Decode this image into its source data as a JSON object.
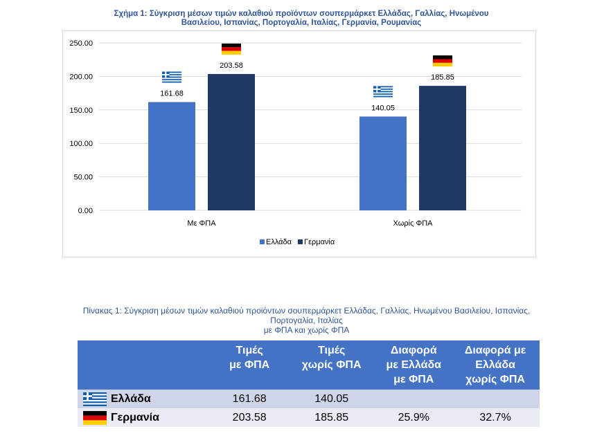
{
  "figure": {
    "title_line1": "Σχήμα 1: Σύγκριση μέσων τιμών καλαθιού προϊόντων σουπερμάρκετ Ελλάδας, Γαλλίας, Ηνωμένου",
    "title_line2": "Βασιλείου, Ισπανίας, Πορτογαλία, Ιταλίας, Γερμανία, Ρουμανίας"
  },
  "chart_data": {
    "type": "bar",
    "categories": [
      "Με ΦΠΑ",
      "Χωρίς ΦΠΑ"
    ],
    "series": [
      {
        "name": "Ελλάδα",
        "values": [
          161.68,
          140.05
        ],
        "color": "#4472c4",
        "flag": "greece-flag-icon"
      },
      {
        "name": "Γερμανία",
        "values": [
          203.58,
          185.85
        ],
        "color": "#203864",
        "flag": "germany-flag-icon"
      }
    ],
    "value_labels": [
      [
        "161.68",
        "140.05"
      ],
      [
        "203.58",
        "185.85"
      ]
    ],
    "yticks": [
      "0.00",
      "50.00",
      "100.00",
      "150.00",
      "200.00",
      "250.00"
    ],
    "ylim": [
      0,
      250
    ],
    "grid": true,
    "legend_position": "bottom"
  },
  "table": {
    "title_line1": "Πίνακας 1: Σύγκριση μέσων τιμών καλαθιού προϊόντων σουπερμάρκετ Ελλάδας, Γαλλίας, Ηνωμένου Βασιλείου, Ισπανίας,",
    "title_line2": "Πορτογαλία, Ιταλίας",
    "title_line3": "με ΦΠΑ και χωρίς ΦΠΑ",
    "headers": [
      [
        "Τιμές",
        "με ΦΠΑ"
      ],
      [
        "Τιμές",
        "χωρίς ΦΠΑ"
      ],
      [
        "Διαφορά",
        "με Ελλάδα",
        "με ΦΠΑ"
      ],
      [
        "Διαφορά με",
        "Ελλάδα",
        "χωρίς ΦΠΑ"
      ]
    ],
    "rows": [
      {
        "country": "Ελλάδα",
        "flag": "greece-flag-icon",
        "with_vat": "161.68",
        "without_vat": "140.05",
        "diff_with_vat": "",
        "diff_without_vat": ""
      },
      {
        "country": "Γερμανία",
        "flag": "germany-flag-icon",
        "with_vat": "203.58",
        "without_vat": "185.85",
        "diff_with_vat": "25.9%",
        "diff_without_vat": "32.7%"
      }
    ]
  }
}
